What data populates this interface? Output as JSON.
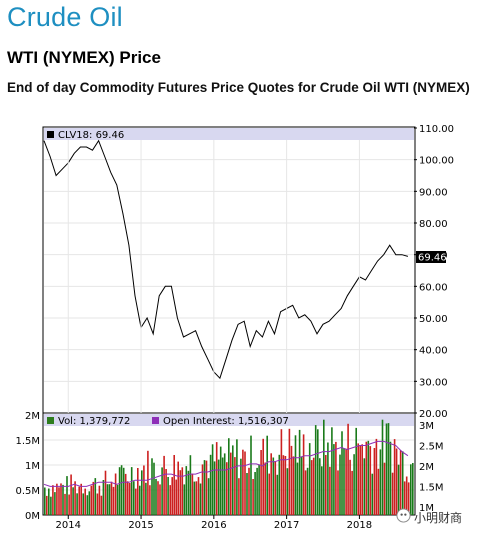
{
  "page": {
    "title": "Crude Oil",
    "subtitle": "WTI (NYMEX) Price",
    "description": "End of day Commodity Futures Price Quotes for Crude Oil WTI (NYMEX)",
    "watermark": "小明财商"
  },
  "chart_data": [
    {
      "type": "line",
      "legend": "CLV18: 69.46",
      "last_value_label": "69.46",
      "ylim": [
        20,
        110
      ],
      "yticks": [
        "110.00",
        "100.00",
        "90.00",
        "80.00",
        "70.00",
        "60.00",
        "50.00",
        "40.00",
        "30.00",
        "20.00"
      ],
      "xticks": [
        "2014",
        "2015",
        "2016",
        "2017",
        "2018"
      ],
      "series_color": "#000000",
      "x": [
        "2013-09",
        "2013-10",
        "2013-11",
        "2013-12",
        "2014-01",
        "2014-02",
        "2014-03",
        "2014-04",
        "2014-05",
        "2014-06",
        "2014-07",
        "2014-08",
        "2014-09",
        "2014-10",
        "2014-11",
        "2014-12",
        "2015-01",
        "2015-02",
        "2015-03",
        "2015-04",
        "2015-05",
        "2015-06",
        "2015-07",
        "2015-08",
        "2015-09",
        "2015-10",
        "2015-11",
        "2015-12",
        "2016-01",
        "2016-02",
        "2016-03",
        "2016-04",
        "2016-05",
        "2016-06",
        "2016-07",
        "2016-08",
        "2016-09",
        "2016-10",
        "2016-11",
        "2016-12",
        "2017-01",
        "2017-02",
        "2017-03",
        "2017-04",
        "2017-05",
        "2017-06",
        "2017-07",
        "2017-08",
        "2017-09",
        "2017-10",
        "2017-11",
        "2017-12",
        "2018-01",
        "2018-02",
        "2018-03",
        "2018-04",
        "2018-05",
        "2018-06",
        "2018-07",
        "2018-08",
        "2018-09"
      ],
      "values": [
        106,
        101,
        95,
        97,
        99,
        102,
        104,
        104,
        103,
        106,
        101,
        96,
        92,
        83,
        73,
        57,
        47,
        50,
        45,
        57,
        60,
        60,
        50,
        44,
        45,
        46,
        41,
        37,
        33,
        31,
        37,
        43,
        48,
        49,
        41,
        46,
        44,
        49,
        45,
        52,
        53,
        54,
        50,
        51,
        49,
        45,
        48,
        49,
        51,
        53,
        57,
        60,
        63,
        62,
        65,
        68,
        70,
        73,
        70,
        70,
        69.46
      ]
    },
    {
      "type": "bar",
      "legend": [
        {
          "name": "Vol: 1,379,772",
          "color": "#2e7d1f"
        },
        {
          "name": "Open Interest: 1,516,307",
          "color": "#8e2fb8"
        }
      ],
      "ylim_left": [
        0,
        2000000
      ],
      "yticks_left": [
        "2M",
        "1.5M",
        "1M",
        "0.5M",
        "0M"
      ],
      "yticks_right": [
        "3M",
        "2.5M",
        "2M",
        "1.5M",
        "1M"
      ],
      "volume_levels": [
        0.6,
        0.6,
        0.6,
        0.62,
        0.64,
        0.64,
        0.65,
        0.65,
        0.66,
        0.66,
        0.7,
        0.75,
        0.8,
        0.85,
        0.9,
        0.95,
        1.0,
        1.05,
        1.0,
        1.0,
        1.0,
        1.05,
        1.05,
        1.1,
        1.1,
        1.1,
        1.15,
        1.15,
        1.2,
        1.2,
        1.2,
        1.25,
        1.25,
        1.2,
        1.25,
        1.3,
        1.3,
        1.35,
        1.35,
        1.4,
        1.45,
        1.45,
        1.4,
        1.45,
        1.45,
        1.5,
        1.5,
        1.5,
        1.45,
        1.5,
        1.5,
        1.5,
        1.55,
        1.5,
        1.5,
        1.5,
        1.55,
        1.5,
        1.3,
        1.2,
        1.1
      ],
      "open_interest": [
        1.55,
        1.5,
        1.5,
        1.5,
        1.5,
        1.55,
        1.5,
        1.5,
        1.55,
        1.6,
        1.6,
        1.6,
        1.55,
        1.6,
        1.6,
        1.65,
        1.65,
        1.65,
        1.7,
        1.75,
        1.8,
        1.8,
        1.75,
        1.75,
        1.8,
        1.8,
        1.85,
        1.85,
        1.9,
        1.9,
        1.9,
        1.95,
        2.0,
        2.0,
        2.05,
        2.05,
        2.0,
        2.1,
        2.1,
        2.15,
        2.15,
        2.2,
        2.2,
        2.25,
        2.25,
        2.3,
        2.35,
        2.35,
        2.4,
        2.45,
        2.4,
        2.45,
        2.5,
        2.5,
        2.55,
        2.6,
        2.6,
        2.55,
        2.5,
        2.35,
        2.25
      ]
    }
  ],
  "colors": {
    "title": "#1e8fc1",
    "legend_bg": "#d8d8f0",
    "up_bar": "#1a7a1a",
    "down_bar": "#cc2020"
  }
}
